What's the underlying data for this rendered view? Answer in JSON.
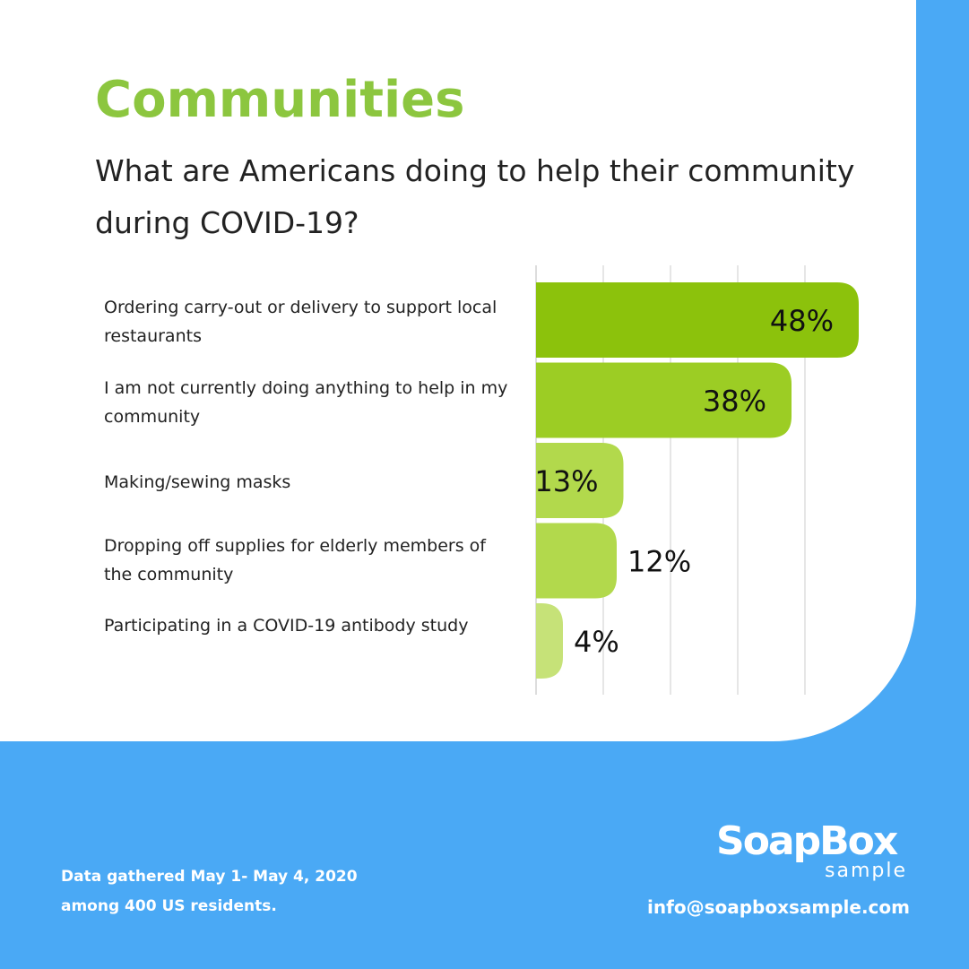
{
  "header": {
    "title": "Communities",
    "subtitle": "What are Americans doing to help their community during COVID-19?"
  },
  "chart_data": {
    "type": "bar",
    "orientation": "horizontal",
    "categories": [
      "Ordering carry-out or delivery to support local restaurants",
      "I am not currently doing anything to help in my community",
      "Making/sewing masks",
      "Dropping off supplies for elderly members of the community",
      "Participating in a COVID-19 antibody study"
    ],
    "values": [
      48,
      38,
      13,
      12,
      4
    ],
    "value_labels": [
      "48%",
      "38%",
      "13%",
      "12%",
      "4%"
    ],
    "xlim": [
      0,
      50
    ],
    "grid": true,
    "colors": [
      "#8cc20c",
      "#9ccd24",
      "#b2d94c",
      "#b2d94c",
      "#c6e278"
    ]
  },
  "footer": {
    "note_line1": "Data gathered May 1- May 4, 2020",
    "note_line2": "among 400 US residents.",
    "logo_main": "SoapBox",
    "logo_sub": "sample",
    "email": "info@soapboxsample.com"
  },
  "colors": {
    "title": "#8cc63f",
    "background_blue": "#4aa9f5",
    "card": "#ffffff",
    "grid": "#dddddd"
  }
}
